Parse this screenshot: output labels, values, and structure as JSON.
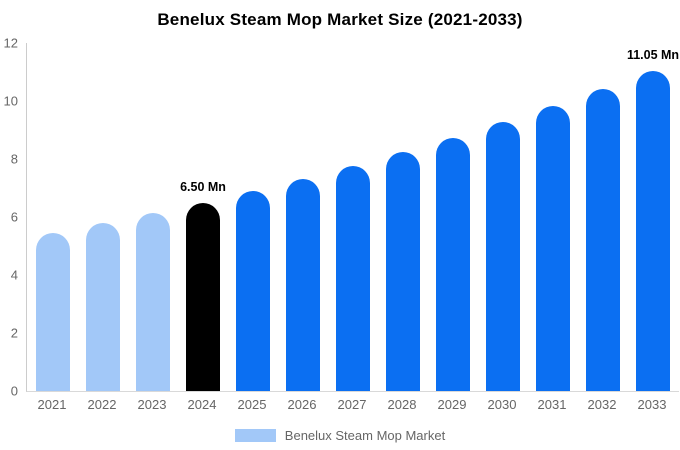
{
  "chart_data": {
    "type": "bar",
    "title": "Benelux Steam Mop Market Size (2021-2033)",
    "categories": [
      "2021",
      "2022",
      "2023",
      "2024",
      "2025",
      "2026",
      "2027",
      "2028",
      "2029",
      "2030",
      "2031",
      "2032",
      "2033"
    ],
    "values": [
      5.45,
      5.78,
      6.13,
      6.5,
      6.89,
      7.31,
      7.76,
      8.23,
      8.73,
      9.26,
      9.82,
      10.42,
      11.05
    ],
    "unit": "Mn",
    "data_labels": {
      "2024": "6.50 Mn",
      "2033": "11.05 Mn"
    },
    "bar_colors": [
      "#a2c8f8",
      "#a2c8f8",
      "#a2c8f8",
      "#000000",
      "#0b6ff2",
      "#0b6ff2",
      "#0b6ff2",
      "#0b6ff2",
      "#0b6ff2",
      "#0b6ff2",
      "#0b6ff2",
      "#0b6ff2",
      "#0b6ff2"
    ],
    "y_ticks": [
      0,
      2,
      4,
      6,
      8,
      10,
      12
    ],
    "ylim": [
      0,
      12
    ],
    "xlabel": "",
    "ylabel": "",
    "grid": false,
    "legend_position": "bottom",
    "legend": {
      "label": "Benelux Steam Mop Market",
      "swatch_color": "#a2c8f8"
    },
    "colors": {
      "historical_bar": "#a2c8f8",
      "base_year_bar": "#000000",
      "forecast_bar": "#0b6ff2",
      "axis_text": "#666666",
      "axis_line": "#cccccc",
      "title_text": "#000000",
      "background": "#ffffff"
    }
  }
}
